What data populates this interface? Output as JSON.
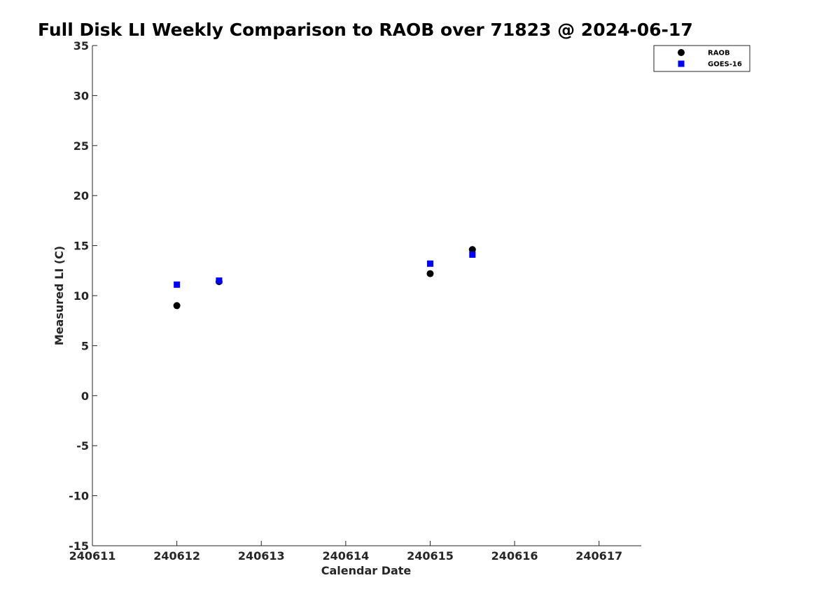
{
  "chart_data": {
    "type": "scatter",
    "title": "Full Disk LI Weekly Comparison to RAOB over 71823 @ 2024-06-17",
    "xlabel": "Calendar Date",
    "ylabel": "Measured LI (C)",
    "xlim": [
      240611,
      240617.5
    ],
    "ylim": [
      -15,
      35
    ],
    "x_ticks": [
      240611,
      240612,
      240613,
      240614,
      240615,
      240616,
      240617
    ],
    "x_tick_labels": [
      "240611",
      "240612",
      "240613",
      "240614",
      "240615",
      "240616",
      "240617"
    ],
    "y_ticks": [
      35,
      30,
      25,
      20,
      15,
      10,
      5,
      0,
      -5,
      -10,
      -15
    ],
    "y_tick_labels": [
      "35",
      "30",
      "25",
      "20",
      "15",
      "10",
      "5",
      "0",
      "-5",
      "-10",
      "-15"
    ],
    "grid": false,
    "legend_position": "top-right",
    "series": [
      {
        "name": "RAOB",
        "marker": "circle",
        "color": "#000000",
        "points": [
          {
            "x": 240612.0,
            "y": 9.0
          },
          {
            "x": 240612.5,
            "y": 11.4
          },
          {
            "x": 240615.0,
            "y": 12.2
          },
          {
            "x": 240615.5,
            "y": 14.6
          }
        ]
      },
      {
        "name": "GOES-16",
        "marker": "square",
        "color": "#0000ff",
        "points": [
          {
            "x": 240612.0,
            "y": 11.1
          },
          {
            "x": 240612.5,
            "y": 11.5
          },
          {
            "x": 240615.0,
            "y": 13.2
          },
          {
            "x": 240615.5,
            "y": 14.1
          }
        ]
      }
    ]
  }
}
